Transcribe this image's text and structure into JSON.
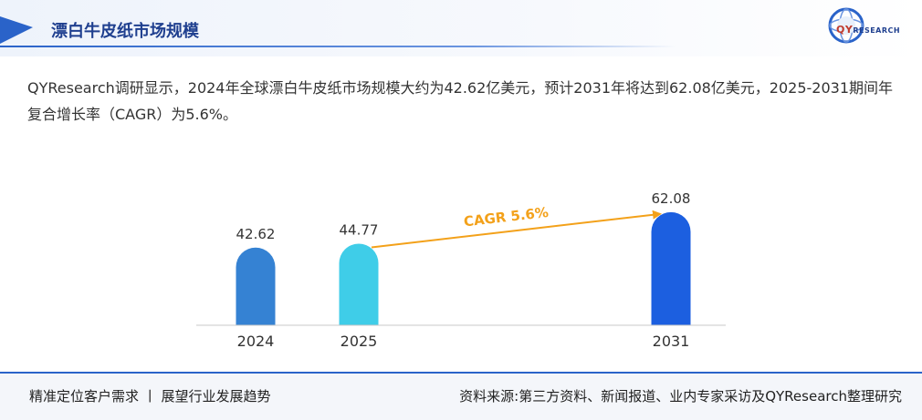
{
  "header": {
    "title": "漂白牛皮纸市场规模",
    "logo": {
      "qy": "QY",
      "rest": "RESEARCH"
    }
  },
  "description": "QYResearch调研显示，2024年全球漂白牛皮纸市场规模大约为42.62亿美元，预计2031年将达到62.08亿美元，2025-2031期间年复合增长率（CAGR）为5.6%。",
  "chart_data": {
    "type": "bar",
    "categories": [
      "2024",
      "2025",
      "2031"
    ],
    "values": [
      42.62,
      44.77,
      62.08
    ],
    "colors": [
      "#3582d3",
      "#3fcde8",
      "#1c5fe0"
    ],
    "annotation": {
      "text": "CAGR 5.6%",
      "from": "2025",
      "to": "2031",
      "color": "#f3a11a"
    },
    "title": "",
    "xlabel": "",
    "ylabel": "",
    "grid": false,
    "legend": "none"
  },
  "footer": {
    "left": "精准定位客户需求 丨 展望行业发展趋势",
    "right": "资料来源:第三方资料、新闻报道、业内专家采访及QYResearch整理研究"
  }
}
